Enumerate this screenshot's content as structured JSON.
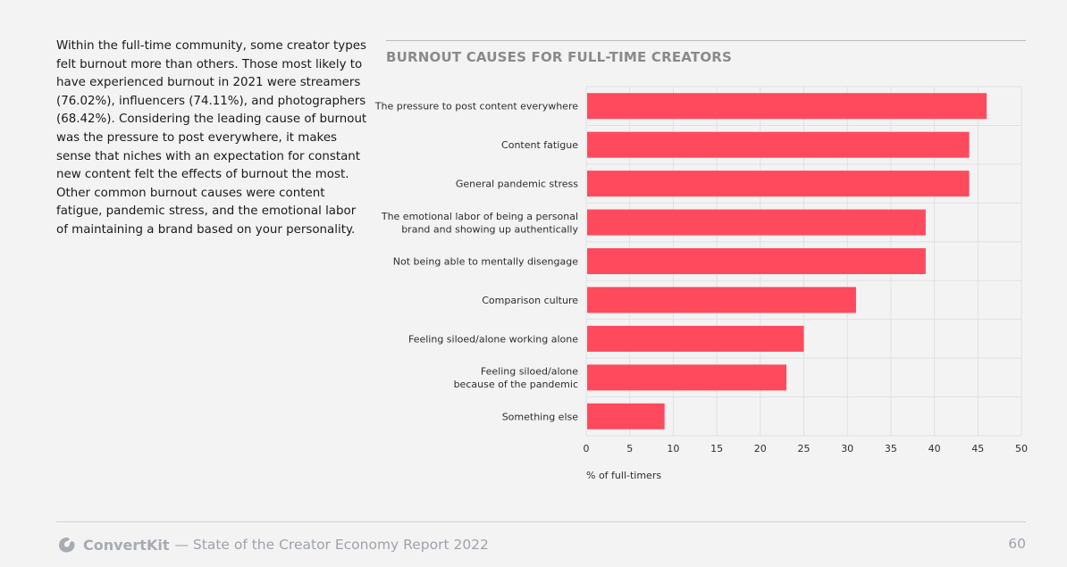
{
  "intro_text": "Within the full-time community, some creator types felt burnout more than others. Those most likely to have experienced burnout in 2021 were streamers (76.02%), influencers (74.11%), and photographers (68.42%). Considering the leading cause of burnout was the pressure to post everywhere, it makes sense that niches with an expectation for constant new content felt the effects of burnout the most. Other common burnout causes were content fatigue, pandemic stress, and the emotional labor of maintaining a brand based on your personality.",
  "footer": {
    "brand": "ConvertKit",
    "report": "— State of the Creator Economy Report 2022",
    "page_number": "60"
  },
  "colors": {
    "bar": "#ff4a5e",
    "grid": "#e1e1e1",
    "title": "#8a8a8a",
    "footer": "#9ea3ab"
  },
  "chart_data": {
    "type": "bar",
    "orientation": "horizontal",
    "title": "BURNOUT CAUSES FOR FULL-TIME CREATORS",
    "xlabel": "% of full-timers",
    "ylabel": "",
    "categories": [
      [
        "The pressure to post content everywhere"
      ],
      [
        "Content fatigue"
      ],
      [
        "General pandemic stress"
      ],
      [
        "The emotional labor of being a personal",
        "brand and showing up authentically"
      ],
      [
        "Not being able to mentally disengage"
      ],
      [
        "Comparison culture"
      ],
      [
        "Feeling siloed/alone working alone"
      ],
      [
        "Feeling siloed/alone",
        "because of the pandemic"
      ],
      [
        "Something else"
      ]
    ],
    "values": [
      46,
      44,
      44,
      39,
      39,
      31,
      25,
      23,
      9
    ],
    "xlim": [
      0,
      50
    ],
    "xticks": [
      0,
      5,
      10,
      15,
      20,
      25,
      30,
      35,
      40,
      45,
      50
    ],
    "grid": true
  }
}
